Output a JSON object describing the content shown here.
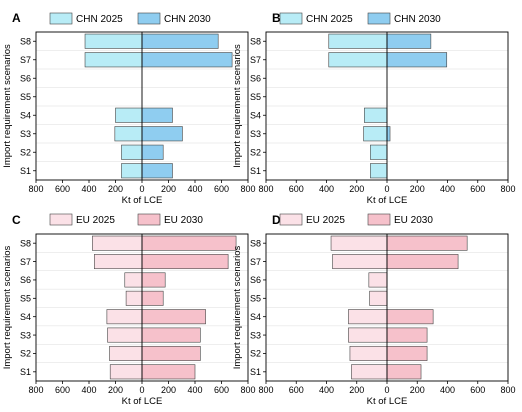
{
  "figure": {
    "y_axis_label": "Import requirement scenarios",
    "x_axis_label": "Kt of LCE"
  },
  "colors": {
    "chn_2025": "#b8ecf6",
    "chn_2030": "#8fcdf0",
    "eu_2025": "#fbe1e7",
    "eu_2030": "#f6c1cb",
    "bar_edge": "#444444",
    "grid": "#dddddd"
  },
  "chart_data": [
    {
      "type": "bar",
      "panel_letter": "A",
      "categories": [
        "S8",
        "S7",
        "S6",
        "S5",
        "S4",
        "S3",
        "S2",
        "S1"
      ],
      "x_ticks": [
        "800",
        "600",
        "400",
        "200",
        "0",
        "200",
        "400",
        "600",
        "800"
      ],
      "xlim": [
        -800,
        800
      ],
      "xlabel": "Kt of LCE",
      "ylabel": "Import requirement scenarios",
      "legend_position": "top",
      "series": [
        {
          "name": "CHN 2025",
          "color_key": "chn_2025",
          "values": [
            -430,
            -430,
            0,
            0,
            -200,
            -205,
            -155,
            -155
          ]
        },
        {
          "name": "CHN 2030",
          "color_key": "chn_2030",
          "values": [
            575,
            680,
            0,
            0,
            230,
            305,
            160,
            230
          ]
        }
      ]
    },
    {
      "type": "bar",
      "panel_letter": "B",
      "categories": [
        "S8",
        "S7",
        "S6",
        "S5",
        "S4",
        "S3",
        "S2",
        "S1"
      ],
      "x_ticks": [
        "800",
        "600",
        "400",
        "200",
        "0",
        "200",
        "400",
        "600",
        "800"
      ],
      "xlim": [
        -800,
        800
      ],
      "xlabel": "Kt of LCE",
      "ylabel": "Import requirement scenarios",
      "legend_position": "top",
      "series": [
        {
          "name": "CHN 2025",
          "color_key": "chn_2025",
          "values": [
            -385,
            -385,
            0,
            0,
            -150,
            -155,
            -110,
            -110
          ]
        },
        {
          "name": "CHN 2030",
          "color_key": "chn_2030",
          "values": [
            290,
            395,
            0,
            0,
            0,
            20,
            0,
            0
          ]
        }
      ]
    },
    {
      "type": "bar",
      "panel_letter": "C",
      "categories": [
        "S8",
        "S7",
        "S6",
        "S5",
        "S4",
        "S3",
        "S2",
        "S1"
      ],
      "x_ticks": [
        "800",
        "600",
        "400",
        "200",
        "0",
        "200",
        "400",
        "600",
        "800"
      ],
      "xlim": [
        -800,
        800
      ],
      "xlabel": "Kt of LCE",
      "ylabel": "Import requirement scenarios",
      "legend_position": "top",
      "series": [
        {
          "name": "EU 2025",
          "color_key": "eu_2025",
          "values": [
            -375,
            -360,
            -130,
            -120,
            -265,
            -260,
            -245,
            -240
          ]
        },
        {
          "name": "EU 2030",
          "color_key": "eu_2030",
          "values": [
            710,
            650,
            175,
            160,
            480,
            440,
            440,
            400
          ]
        }
      ]
    },
    {
      "type": "bar",
      "panel_letter": "D",
      "categories": [
        "S8",
        "S7",
        "S6",
        "S5",
        "S4",
        "S3",
        "S2",
        "S1"
      ],
      "x_ticks": [
        "800",
        "600",
        "400",
        "200",
        "0",
        "200",
        "400",
        "600",
        "800"
      ],
      "xlim": [
        -800,
        800
      ],
      "xlabel": "Kt of LCE",
      "ylabel": "Import requirement scenarios",
      "legend_position": "top",
      "series": [
        {
          "name": "EU 2025",
          "color_key": "eu_2025",
          "values": [
            -370,
            -360,
            -120,
            -115,
            -255,
            -255,
            -245,
            -235
          ]
        },
        {
          "name": "EU 2030",
          "color_key": "eu_2030",
          "values": [
            530,
            470,
            0,
            0,
            305,
            265,
            265,
            225
          ]
        }
      ]
    }
  ]
}
